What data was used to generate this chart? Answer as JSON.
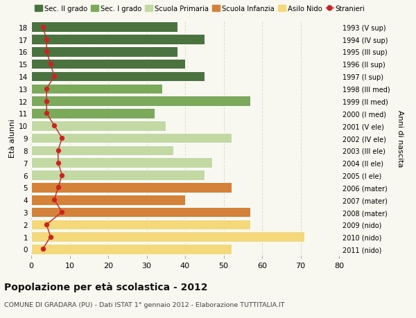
{
  "ages": [
    18,
    17,
    16,
    15,
    14,
    13,
    12,
    11,
    10,
    9,
    8,
    7,
    6,
    5,
    4,
    3,
    2,
    1,
    0
  ],
  "values": [
    38,
    45,
    38,
    40,
    45,
    34,
    57,
    32,
    35,
    52,
    37,
    47,
    45,
    52,
    40,
    57,
    57,
    71,
    52
  ],
  "stranieri": [
    3,
    4,
    4,
    5,
    6,
    4,
    4,
    4,
    6,
    8,
    7,
    7,
    8,
    7,
    6,
    8,
    4,
    5,
    3
  ],
  "right_labels": [
    "1993 (V sup)",
    "1994 (IV sup)",
    "1995 (III sup)",
    "1996 (II sup)",
    "1997 (I sup)",
    "1998 (III med)",
    "1999 (II med)",
    "2000 (I med)",
    "2001 (V ele)",
    "2002 (IV ele)",
    "2003 (III ele)",
    "2004 (II ele)",
    "2005 (I ele)",
    "2006 (mater)",
    "2007 (mater)",
    "2008 (mater)",
    "2009 (nido)",
    "2010 (nido)",
    "2011 (nido)"
  ],
  "bar_colors": [
    "#4a7340",
    "#4a7340",
    "#4a7340",
    "#4a7340",
    "#4a7340",
    "#7aaa5a",
    "#7aaa5a",
    "#7aaa5a",
    "#c2d9a4",
    "#c2d9a4",
    "#c2d9a4",
    "#c2d9a4",
    "#c2d9a4",
    "#d4813a",
    "#d4813a",
    "#d4813a",
    "#f5d87a",
    "#f5d87a",
    "#f5d87a"
  ],
  "legend_labels": [
    "Sec. II grado",
    "Sec. I grado",
    "Scuola Primaria",
    "Scuola Infanzia",
    "Asilo Nido",
    "Stranieri"
  ],
  "legend_colors": [
    "#4a7340",
    "#7aaa5a",
    "#c2d9a4",
    "#d4813a",
    "#f5d87a",
    "#cc2222"
  ],
  "title": "Popolazione per età scolastica - 2012",
  "subtitle": "COMUNE DI GRADARA (PU) - Dati ISTAT 1° gennaio 2012 - Elaborazione TUTTITALIA.IT",
  "ylabel": "Età alunni",
  "ylabel_right": "Anni di nascita",
  "xlim": [
    0,
    80
  ],
  "xticks": [
    0,
    10,
    20,
    30,
    40,
    50,
    60,
    70,
    80
  ],
  "bg_color": "#f8f8f0",
  "grid_color": "#ddddcc",
  "stranieri_color": "#cc2222",
  "bar_height": 0.82
}
